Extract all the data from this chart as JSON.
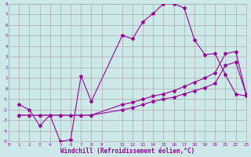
{
  "bg_color": "#cce8e8",
  "grid_color": "#aaaaaa",
  "line_color": "#990099",
  "xlabel": "Windchill (Refroidissement éolien,°C)",
  "xlim": [
    0,
    23
  ],
  "ylim": [
    -5,
    8
  ],
  "xtick_vals": [
    0,
    1,
    2,
    3,
    4,
    5,
    6,
    7,
    8,
    9,
    11,
    12,
    13,
    14,
    15,
    16,
    17,
    18,
    19,
    20,
    21,
    22,
    23
  ],
  "ytick_vals": [
    -5,
    -4,
    -3,
    -2,
    -1,
    0,
    1,
    2,
    3,
    4,
    5,
    6,
    7,
    8
  ],
  "curve1_x": [
    1,
    2,
    3,
    4,
    5,
    6,
    7,
    8,
    11,
    12,
    13,
    14,
    15,
    16,
    17,
    18,
    19,
    20,
    21,
    22,
    23
  ],
  "curve1_y": [
    -1.5,
    -2.0,
    -3.5,
    -2.5,
    -5.0,
    -4.8,
    1.2,
    -1.2,
    5.0,
    4.7,
    6.3,
    7.1,
    8.0,
    8.0,
    7.6,
    4.6,
    3.2,
    3.3,
    1.3,
    -0.5,
    -0.7
  ],
  "curve2_x": [
    1,
    2,
    3,
    4,
    5,
    6,
    7,
    8,
    11,
    12,
    13,
    14,
    15,
    16,
    17,
    18,
    19,
    20,
    21,
    22,
    23
  ],
  "curve2_y": [
    -2.5,
    -2.5,
    -2.5,
    -2.5,
    -2.5,
    -2.5,
    -2.5,
    -2.5,
    -1.5,
    -1.3,
    -1.0,
    -0.7,
    -0.5,
    -0.2,
    0.2,
    0.6,
    1.0,
    1.5,
    3.3,
    3.5,
    -0.5
  ],
  "curve3_x": [
    1,
    2,
    3,
    4,
    5,
    6,
    7,
    8,
    11,
    12,
    13,
    14,
    15,
    16,
    17,
    18,
    19,
    20,
    21,
    22,
    23
  ],
  "curve3_y": [
    -2.5,
    -2.5,
    -2.5,
    -2.5,
    -2.5,
    -2.5,
    -2.5,
    -2.5,
    -2.0,
    -1.8,
    -1.5,
    -1.2,
    -1.0,
    -0.8,
    -0.5,
    -0.2,
    0.1,
    0.5,
    2.2,
    2.5,
    -0.5
  ]
}
